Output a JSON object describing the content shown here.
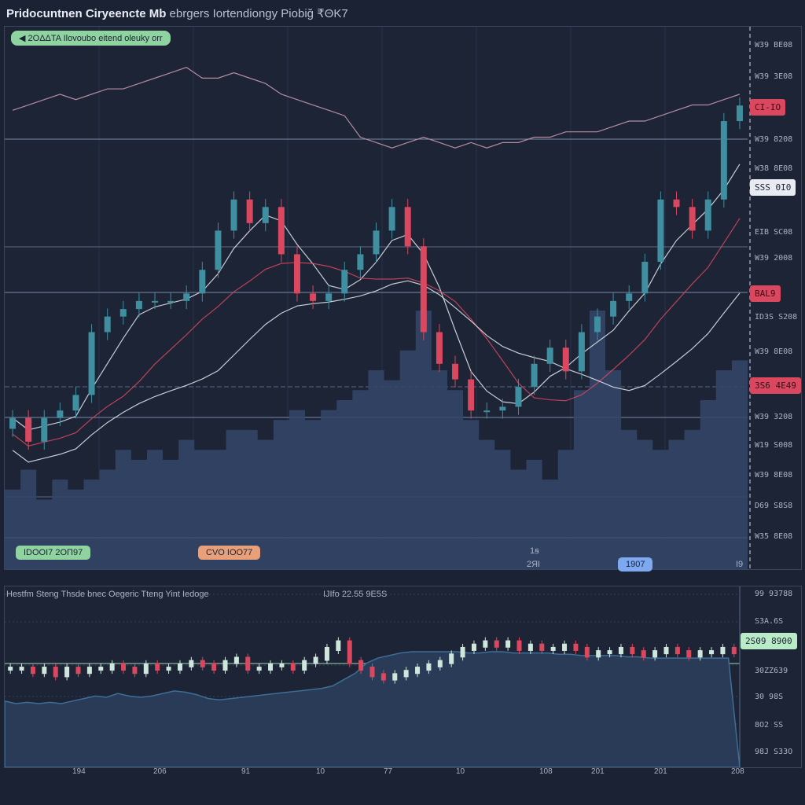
{
  "header": {
    "title_bold": "Pridocuntnen Ciryeencte Mb",
    "title_rest": "ebrgers Iortendiongy Piobiğ ₹ΘK7"
  },
  "main": {
    "top_badge": "◀ 2OΔΔTA Ilovoubo eitend oleuky orr",
    "bottom_badges": [
      {
        "text": "IDOOI7 2ΟΠ97",
        "color": "#8fd4a0"
      },
      {
        "text": "CVO IOO77",
        "color": "#e8a07a"
      },
      {
        "text": "1907",
        "color": "#7ea8f0"
      }
    ],
    "small_labels": [
      "1ꞩ",
      "2ЯI",
      "I9"
    ],
    "axis_labels": [
      "W39 BE08",
      "W39 3E08",
      "W39 8208",
      "W38 8E08",
      "EIB SC08",
      "W39 2008",
      "ІDЗS S208",
      "W39 8E08",
      "W39 3208",
      "W19 S008",
      "W39 8E08",
      "D69 S8S8",
      "W35 8E08"
    ],
    "axis_badges": [
      {
        "text": "CI-IO",
        "color": "#d9485f"
      },
      {
        "text": "SSS 0I0",
        "color": "#e8ecf2"
      },
      {
        "text": "BAL9",
        "color": "#d9485f"
      },
      {
        "text": "3S6 4E49",
        "color": "#d9485f"
      }
    ],
    "colors": {
      "up": "#3f8fa0",
      "down": "#d9485f",
      "ma": "#e6eaf0",
      "overlay": "#b58ca0",
      "volume": "#34476a"
    }
  },
  "lower": {
    "title": "Hestfm Steng Thsde bnec Oegeric Tteng Yint Iedoge",
    "subtitle": "IJIfo 22.55 9E5S",
    "axis_labels": [
      "99 93788",
      "S3A.6S",
      "30ZZ639",
      "30 98S",
      "8O2 SS",
      "98J S33O"
    ],
    "axis_badge": {
      "text": "2S09 8900",
      "color": "#b9ecc6"
    },
    "colors": {
      "up": "#cfe6dc",
      "down": "#d9485f",
      "area": "#3e6e96"
    }
  },
  "x_axis": [
    "194",
    "206",
    "91",
    "10",
    "77",
    "10",
    "108",
    "201",
    "201",
    "208"
  ],
  "chart_data": [
    {
      "type": "candlestick",
      "closes": [
        27.7,
        23.3,
        27.7,
        29.1,
        32.0,
        43.7,
        46.6,
        48.0,
        49.5,
        49.5,
        49.5,
        50.9,
        55.3,
        62.6,
        68.4,
        64.0,
        67.0,
        58.2,
        50.9,
        49.5,
        50.9,
        55.3,
        58.2,
        62.6,
        67.0,
        59.7,
        43.7,
        37.8,
        34.9,
        29.1,
        29.1,
        29.8,
        33.5,
        37.8,
        40.8,
        36.4,
        43.7,
        46.6,
        49.5,
        50.9,
        56.8,
        68.4,
        67.0,
        62.6,
        68.4,
        83.0,
        85.9
      ],
      "overlay_line": [
        85,
        86,
        87,
        88,
        87,
        88,
        89,
        89,
        90,
        91,
        92,
        93,
        91,
        91,
        92,
        91,
        90,
        88,
        87,
        86,
        85,
        84,
        80,
        79,
        78,
        79,
        80,
        79,
        78,
        79,
        78,
        79,
        79,
        80,
        80,
        81,
        81,
        81,
        82,
        83,
        83,
        84,
        85,
        86,
        86,
        87,
        88
      ],
      "volume": [
        8,
        10,
        7,
        9,
        8,
        9,
        10,
        12,
        11,
        12,
        11,
        13,
        12,
        12,
        14,
        14,
        13,
        15,
        16,
        15,
        16,
        17,
        18,
        20,
        19,
        22,
        26,
        20,
        18,
        15,
        13,
        12,
        10,
        11,
        9,
        12,
        18,
        26,
        20,
        14,
        13,
        12,
        13,
        14,
        17,
        20,
        21
      ],
      "ylim": [
        0,
        100
      ]
    },
    {
      "type": "candlestick",
      "closes": [
        50,
        50,
        49,
        50,
        48,
        50,
        49,
        50,
        50,
        51,
        50,
        49,
        51,
        50,
        50,
        51,
        52,
        51,
        50,
        52,
        53,
        50,
        50,
        51,
        51,
        50,
        52,
        53,
        56,
        58,
        52,
        50,
        48,
        47,
        48,
        49,
        50,
        51,
        52,
        54,
        56,
        57,
        58,
        57,
        58,
        56,
        57,
        56,
        56,
        57,
        56,
        54,
        55,
        55,
        56,
        55,
        54,
        55,
        56,
        55,
        54,
        55,
        55,
        56,
        55
      ],
      "area": [
        38,
        36,
        37,
        36,
        37,
        36,
        38,
        40,
        42,
        41,
        44,
        42,
        41,
        42,
        44,
        46,
        45,
        43,
        40,
        39,
        40,
        41,
        42,
        43,
        44,
        45,
        46,
        47,
        48,
        50,
        55,
        60,
        68,
        72,
        74,
        76,
        77,
        77,
        77,
        77,
        77,
        76,
        76,
        77,
        77,
        76,
        76,
        76,
        76,
        75,
        75,
        74,
        74,
        74,
        74,
        73,
        73,
        72,
        72,
        72,
        72,
        72,
        72,
        72,
        72
      ],
      "ylim": [
        0,
        100
      ]
    }
  ]
}
